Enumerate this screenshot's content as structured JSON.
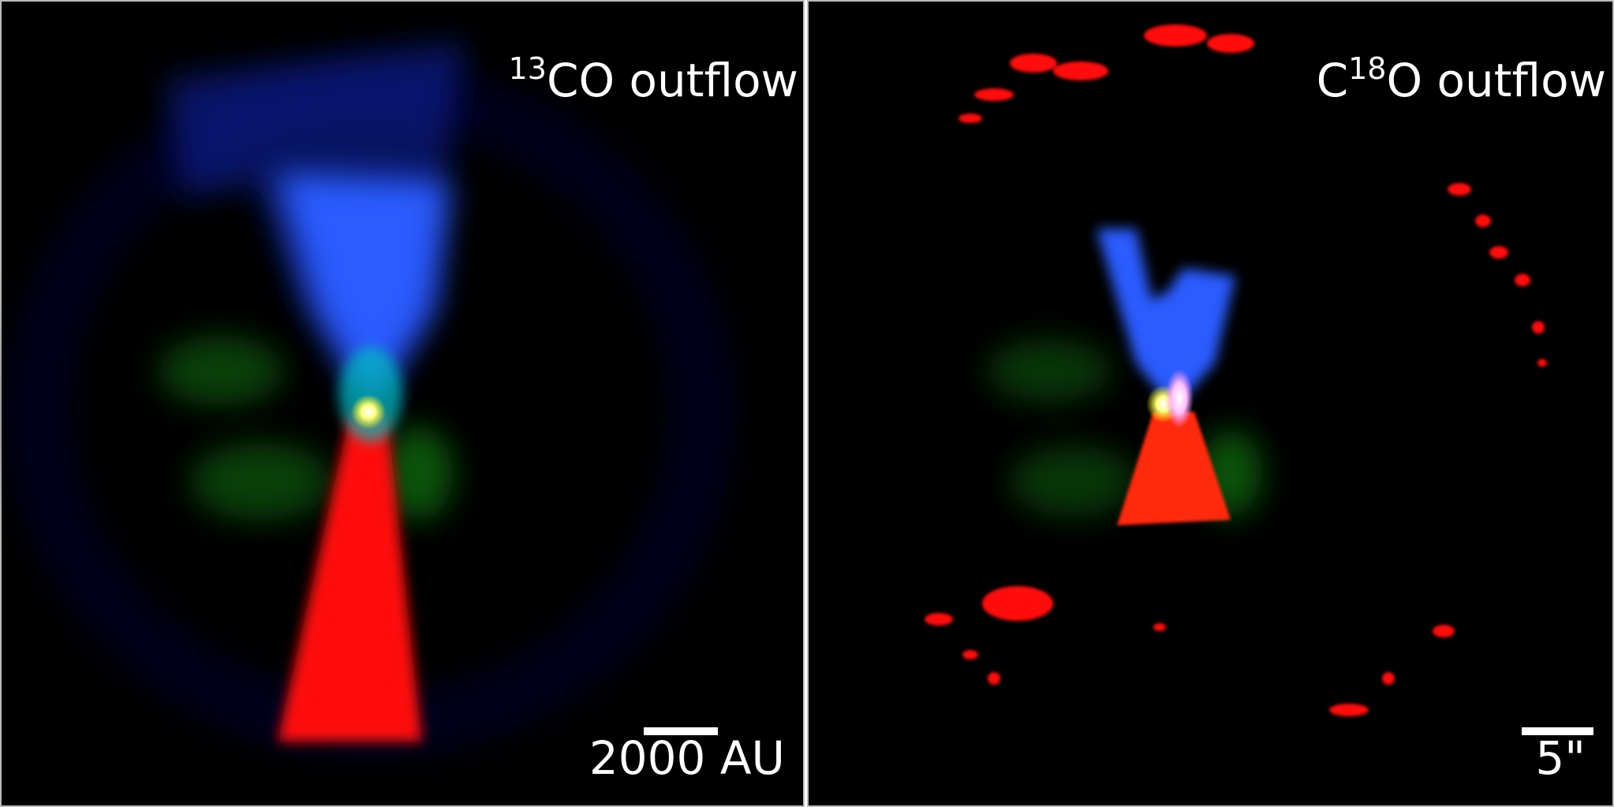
{
  "panels": [
    {
      "title": [
        {
          "text": "13",
          "sup": true
        },
        {
          "text": "CO outflow"
        }
      ],
      "scale_bar": "2000 AU"
    },
    {
      "title": [
        {
          "text": "C"
        },
        {
          "text": "18",
          "sup": true
        },
        {
          "text": "O outflow"
        }
      ],
      "scale_bar": "5\""
    }
  ]
}
